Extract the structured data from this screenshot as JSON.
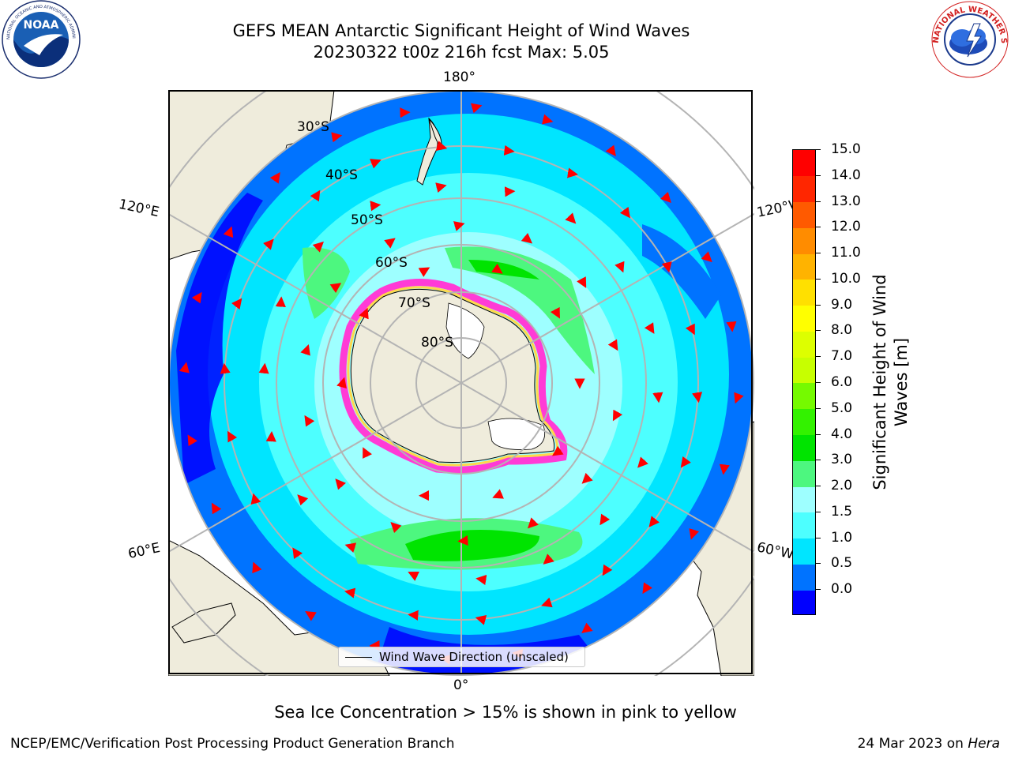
{
  "title": {
    "line1": "GEFS MEAN Antarctic Significant Height of Wind Waves",
    "line2": "20230322 t00z 216h fcst   Max: 5.05"
  },
  "logos": {
    "left": "noaa-logo",
    "left_text": "NOAA",
    "left_ring_text": "NATIONAL OCEANIC AND ATMOSPHERIC ADMINISTRATION · U.S. DEPARTMENT OF COMMERCE",
    "right": "nws-logo",
    "right_ring_text": "NATIONAL WEATHER SERVICE"
  },
  "map": {
    "projection": "south-polar-stereographic",
    "lon_labels": {
      "top": "180°",
      "bottom": "0°",
      "upper_left": "120°E",
      "upper_right": "120°W",
      "lower_left": "60°E",
      "lower_right": "60°W"
    },
    "lat_labels": [
      "30°S",
      "40°S",
      "50°S",
      "60°S",
      "70°S",
      "80°S"
    ],
    "legend_label": "Wind Wave Direction (unscaled)",
    "colors": {
      "land": "#efecdc",
      "ice_pink": "#ff3bd6",
      "ice_yellow": "#ffd84a",
      "arrow": "#ff0000",
      "grid": "#b4b4b4"
    }
  },
  "colorbar": {
    "title": "Significant Height of Wind Waves [m]",
    "ticks": [
      "15.0",
      "14.0",
      "13.0",
      "12.0",
      "11.0",
      "10.0",
      "9.0",
      "8.0",
      "7.0",
      "6.0",
      "5.0",
      "4.0",
      "3.0",
      "2.0",
      "1.5",
      "1.0",
      "0.5",
      "0.0"
    ],
    "colors": [
      "#0000ff",
      "#0073ff",
      "#00e5ff",
      "#4dffff",
      "#9effff",
      "#4df77f",
      "#00e400",
      "#33f200",
      "#75fa00",
      "#c7ff00",
      "#ddff00",
      "#ffff00",
      "#ffe000",
      "#ffb300",
      "#ff8c00",
      "#ff5a00",
      "#ff2600",
      "#ff0000"
    ]
  },
  "note": "Sea Ice Concentration > 15% is shown in pink to yellow",
  "footer": {
    "left": "NCEP/EMC/Verification Post Processing Product Generation Branch",
    "right_prefix": "24 Mar 2023 on ",
    "right_italic": "Hera"
  }
}
